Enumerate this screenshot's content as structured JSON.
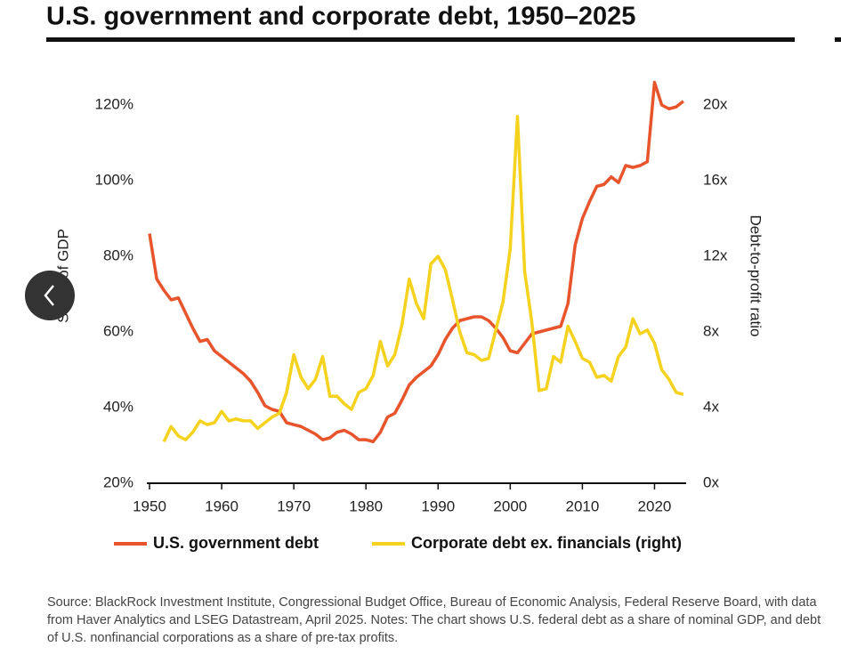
{
  "chart_data": {
    "type": "line",
    "title": "U.S. government and corporate debt, 1950–2025",
    "y_label": "Share of GDP",
    "y2_label": "Debt-to-profit ratio",
    "source": "Source: BlackRock Investment Institute, Congressional Budget Office, Bureau of Economic Analysis, Federal Reserve Board, with data from Haver Analytics and LSEG Datastream, April 2025. Notes: The chart shows U.S. federal debt as a share of nominal GDP, and debt of U.S. nonfinancial corporations as a share of pre-tax profits.",
    "x": [
      1950,
      1951,
      1952,
      1953,
      1954,
      1955,
      1956,
      1957,
      1958,
      1959,
      1960,
      1961,
      1962,
      1963,
      1964,
      1965,
      1966,
      1967,
      1968,
      1969,
      1970,
      1971,
      1972,
      1973,
      1974,
      1975,
      1976,
      1977,
      1978,
      1979,
      1980,
      1981,
      1982,
      1983,
      1984,
      1985,
      1986,
      1987,
      1988,
      1989,
      1990,
      1991,
      1992,
      1993,
      1994,
      1995,
      1996,
      1997,
      1998,
      1999,
      2000,
      2001,
      2002,
      2003,
      2004,
      2005,
      2006,
      2007,
      2008,
      2009,
      2010,
      2011,
      2012,
      2013,
      2014,
      2015,
      2016,
      2017,
      2018,
      2019,
      2020,
      2021,
      2022,
      2023,
      2024
    ],
    "series": [
      {
        "name": "U.S. government debt",
        "color": "#e8542b",
        "axis": "y",
        "values": [
          86,
          74,
          71,
          68.5,
          69,
          65,
          61,
          57.5,
          58,
          55,
          53.5,
          52,
          50.5,
          49,
          47,
          44,
          40.5,
          39.5,
          39,
          36,
          35.5,
          35,
          34,
          33,
          31.5,
          32,
          33.5,
          34,
          33,
          31.5,
          31.5,
          31,
          33.5,
          37.5,
          38.5,
          42,
          46,
          48,
          49.5,
          51,
          54,
          58,
          61,
          63,
          63.5,
          64,
          64,
          63,
          61,
          58.5,
          55,
          54.5,
          57,
          59.5,
          60,
          60.5,
          61,
          61.5,
          67.5,
          83,
          90,
          94.5,
          98.5,
          99,
          101,
          99.5,
          104,
          103.5,
          104,
          105,
          126,
          120,
          119,
          119.5,
          121
        ]
      },
      {
        "name": "Corporate debt ex. financials (right)",
        "color": "#f5d21e",
        "axis": "y2",
        "values": [
          null,
          null,
          2.2,
          3.0,
          2.5,
          2.3,
          2.7,
          3.3,
          3.1,
          3.2,
          3.8,
          3.3,
          3.4,
          3.3,
          3.3,
          2.9,
          3.2,
          3.5,
          3.7,
          4.8,
          6.8,
          5.6,
          5.0,
          5.5,
          6.7,
          4.6,
          4.6,
          4.2,
          3.9,
          4.8,
          5.0,
          5.7,
          7.5,
          6.2,
          6.8,
          8.4,
          10.8,
          9.5,
          8.7,
          11.6,
          12.0,
          11.3,
          9.7,
          8.0,
          6.9,
          6.8,
          6.5,
          6.6,
          8.1,
          9.6,
          12.4,
          19.4,
          11.2,
          8.5,
          4.9,
          5.0,
          6.7,
          6.4,
          8.3,
          7.5,
          6.6,
          6.4,
          5.6,
          5.7,
          5.4,
          6.7,
          7.2,
          8.7,
          7.9,
          8.1,
          7.4,
          6.0,
          5.5,
          4.8,
          4.7
        ]
      }
    ],
    "xlim": [
      1950,
      2025
    ],
    "xticks": [
      1950,
      1960,
      1970,
      1980,
      1990,
      2000,
      2010,
      2020
    ],
    "ylim": [
      20,
      130
    ],
    "yticks": [
      {
        "value": 20,
        "label": "20%"
      },
      {
        "value": 40,
        "label": "40%"
      },
      {
        "value": 60,
        "label": "60%"
      },
      {
        "value": 80,
        "label": "80%"
      },
      {
        "value": 100,
        "label": "100%"
      },
      {
        "value": 120,
        "label": "120%"
      }
    ],
    "y2lim": [
      0,
      22
    ],
    "y2ticks": [
      {
        "value": 0,
        "label": "0x"
      },
      {
        "value": 4,
        "label": "4x"
      },
      {
        "value": 8,
        "label": "8x"
      },
      {
        "value": 12,
        "label": "12x"
      },
      {
        "value": 16,
        "label": "16x"
      },
      {
        "value": 20,
        "label": "20x"
      }
    ],
    "grid": false,
    "legend": "bottom"
  }
}
